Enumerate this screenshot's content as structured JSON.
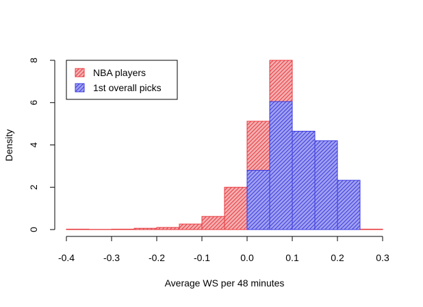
{
  "chart_data": {
    "type": "bar",
    "title": "",
    "xlabel": "Average WS per 48 minutes",
    "ylabel": "Density",
    "xlim": [
      -0.4,
      0.3
    ],
    "ylim": [
      0,
      8
    ],
    "xticks": [
      "-0.4",
      "-0.3",
      "-0.2",
      "-0.1",
      "0.0",
      "0.1",
      "0.2",
      "0.3"
    ],
    "yticks": [
      "0",
      "2",
      "4",
      "6",
      "8"
    ],
    "grid": false,
    "legend_position": "top-left",
    "bin_width": 0.05,
    "series": [
      {
        "name": "NBA players",
        "color": "#e8383d",
        "bins": [
          {
            "x0": -0.4,
            "x1": -0.35,
            "density": 0.02
          },
          {
            "x0": -0.35,
            "x1": -0.3,
            "density": 0.01
          },
          {
            "x0": -0.3,
            "x1": -0.25,
            "density": 0.02
          },
          {
            "x0": -0.25,
            "x1": -0.2,
            "density": 0.06
          },
          {
            "x0": -0.2,
            "x1": -0.15,
            "density": 0.1
          },
          {
            "x0": -0.15,
            "x1": -0.1,
            "density": 0.26
          },
          {
            "x0": -0.1,
            "x1": -0.05,
            "density": 0.62
          },
          {
            "x0": -0.05,
            "x1": 0.0,
            "density": 2.0
          },
          {
            "x0": 0.0,
            "x1": 0.05,
            "density": 5.12
          },
          {
            "x0": 0.05,
            "x1": 0.1,
            "density": 8.0
          },
          {
            "x0": 0.1,
            "x1": 0.15,
            "density": 3.15
          },
          {
            "x0": 0.15,
            "x1": 0.2,
            "density": 0.58
          },
          {
            "x0": 0.2,
            "x1": 0.25,
            "density": 0.1
          },
          {
            "x0": 0.25,
            "x1": 0.3,
            "density": 0.02
          }
        ]
      },
      {
        "name": "1st overall picks",
        "color": "#3a3ae0",
        "bins": [
          {
            "x0": 0.0,
            "x1": 0.05,
            "density": 2.8
          },
          {
            "x0": 0.05,
            "x1": 0.1,
            "density": 6.05
          },
          {
            "x0": 0.1,
            "x1": 0.15,
            "density": 4.65
          },
          {
            "x0": 0.15,
            "x1": 0.2,
            "density": 4.2
          },
          {
            "x0": 0.2,
            "x1": 0.25,
            "density": 2.33
          }
        ]
      }
    ]
  }
}
